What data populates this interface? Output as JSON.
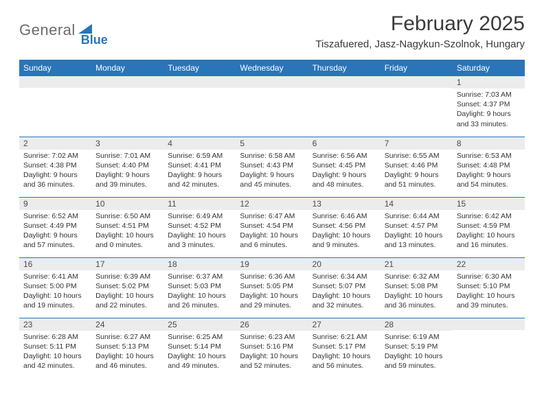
{
  "logo": {
    "general": "General",
    "blue": "Blue"
  },
  "title": "February 2025",
  "location": "Tiszafuered, Jasz-Nagykun-Szolnok, Hungary",
  "colors": {
    "header_bg": "#2a74b8",
    "header_text": "#ffffff",
    "daynum_bg": "#ececec",
    "body_text": "#333333",
    "rule": "#2a74b8",
    "logo_gray": "#6b6b6b",
    "logo_blue": "#2a74b8"
  },
  "day_headers": [
    "Sunday",
    "Monday",
    "Tuesday",
    "Wednesday",
    "Thursday",
    "Friday",
    "Saturday"
  ],
  "weeks": [
    [
      {
        "n": "",
        "sr": "",
        "ss": "",
        "dl": ""
      },
      {
        "n": "",
        "sr": "",
        "ss": "",
        "dl": ""
      },
      {
        "n": "",
        "sr": "",
        "ss": "",
        "dl": ""
      },
      {
        "n": "",
        "sr": "",
        "ss": "",
        "dl": ""
      },
      {
        "n": "",
        "sr": "",
        "ss": "",
        "dl": ""
      },
      {
        "n": "",
        "sr": "",
        "ss": "",
        "dl": ""
      },
      {
        "n": "1",
        "sr": "Sunrise: 7:03 AM",
        "ss": "Sunset: 4:37 PM",
        "dl": "Daylight: 9 hours and 33 minutes."
      }
    ],
    [
      {
        "n": "2",
        "sr": "Sunrise: 7:02 AM",
        "ss": "Sunset: 4:38 PM",
        "dl": "Daylight: 9 hours and 36 minutes."
      },
      {
        "n": "3",
        "sr": "Sunrise: 7:01 AM",
        "ss": "Sunset: 4:40 PM",
        "dl": "Daylight: 9 hours and 39 minutes."
      },
      {
        "n": "4",
        "sr": "Sunrise: 6:59 AM",
        "ss": "Sunset: 4:41 PM",
        "dl": "Daylight: 9 hours and 42 minutes."
      },
      {
        "n": "5",
        "sr": "Sunrise: 6:58 AM",
        "ss": "Sunset: 4:43 PM",
        "dl": "Daylight: 9 hours and 45 minutes."
      },
      {
        "n": "6",
        "sr": "Sunrise: 6:56 AM",
        "ss": "Sunset: 4:45 PM",
        "dl": "Daylight: 9 hours and 48 minutes."
      },
      {
        "n": "7",
        "sr": "Sunrise: 6:55 AM",
        "ss": "Sunset: 4:46 PM",
        "dl": "Daylight: 9 hours and 51 minutes."
      },
      {
        "n": "8",
        "sr": "Sunrise: 6:53 AM",
        "ss": "Sunset: 4:48 PM",
        "dl": "Daylight: 9 hours and 54 minutes."
      }
    ],
    [
      {
        "n": "9",
        "sr": "Sunrise: 6:52 AM",
        "ss": "Sunset: 4:49 PM",
        "dl": "Daylight: 9 hours and 57 minutes."
      },
      {
        "n": "10",
        "sr": "Sunrise: 6:50 AM",
        "ss": "Sunset: 4:51 PM",
        "dl": "Daylight: 10 hours and 0 minutes."
      },
      {
        "n": "11",
        "sr": "Sunrise: 6:49 AM",
        "ss": "Sunset: 4:52 PM",
        "dl": "Daylight: 10 hours and 3 minutes."
      },
      {
        "n": "12",
        "sr": "Sunrise: 6:47 AM",
        "ss": "Sunset: 4:54 PM",
        "dl": "Daylight: 10 hours and 6 minutes."
      },
      {
        "n": "13",
        "sr": "Sunrise: 6:46 AM",
        "ss": "Sunset: 4:56 PM",
        "dl": "Daylight: 10 hours and 9 minutes."
      },
      {
        "n": "14",
        "sr": "Sunrise: 6:44 AM",
        "ss": "Sunset: 4:57 PM",
        "dl": "Daylight: 10 hours and 13 minutes."
      },
      {
        "n": "15",
        "sr": "Sunrise: 6:42 AM",
        "ss": "Sunset: 4:59 PM",
        "dl": "Daylight: 10 hours and 16 minutes."
      }
    ],
    [
      {
        "n": "16",
        "sr": "Sunrise: 6:41 AM",
        "ss": "Sunset: 5:00 PM",
        "dl": "Daylight: 10 hours and 19 minutes."
      },
      {
        "n": "17",
        "sr": "Sunrise: 6:39 AM",
        "ss": "Sunset: 5:02 PM",
        "dl": "Daylight: 10 hours and 22 minutes."
      },
      {
        "n": "18",
        "sr": "Sunrise: 6:37 AM",
        "ss": "Sunset: 5:03 PM",
        "dl": "Daylight: 10 hours and 26 minutes."
      },
      {
        "n": "19",
        "sr": "Sunrise: 6:36 AM",
        "ss": "Sunset: 5:05 PM",
        "dl": "Daylight: 10 hours and 29 minutes."
      },
      {
        "n": "20",
        "sr": "Sunrise: 6:34 AM",
        "ss": "Sunset: 5:07 PM",
        "dl": "Daylight: 10 hours and 32 minutes."
      },
      {
        "n": "21",
        "sr": "Sunrise: 6:32 AM",
        "ss": "Sunset: 5:08 PM",
        "dl": "Daylight: 10 hours and 36 minutes."
      },
      {
        "n": "22",
        "sr": "Sunrise: 6:30 AM",
        "ss": "Sunset: 5:10 PM",
        "dl": "Daylight: 10 hours and 39 minutes."
      }
    ],
    [
      {
        "n": "23",
        "sr": "Sunrise: 6:28 AM",
        "ss": "Sunset: 5:11 PM",
        "dl": "Daylight: 10 hours and 42 minutes."
      },
      {
        "n": "24",
        "sr": "Sunrise: 6:27 AM",
        "ss": "Sunset: 5:13 PM",
        "dl": "Daylight: 10 hours and 46 minutes."
      },
      {
        "n": "25",
        "sr": "Sunrise: 6:25 AM",
        "ss": "Sunset: 5:14 PM",
        "dl": "Daylight: 10 hours and 49 minutes."
      },
      {
        "n": "26",
        "sr": "Sunrise: 6:23 AM",
        "ss": "Sunset: 5:16 PM",
        "dl": "Daylight: 10 hours and 52 minutes."
      },
      {
        "n": "27",
        "sr": "Sunrise: 6:21 AM",
        "ss": "Sunset: 5:17 PM",
        "dl": "Daylight: 10 hours and 56 minutes."
      },
      {
        "n": "28",
        "sr": "Sunrise: 6:19 AM",
        "ss": "Sunset: 5:19 PM",
        "dl": "Daylight: 10 hours and 59 minutes."
      },
      {
        "n": "",
        "sr": "",
        "ss": "",
        "dl": ""
      }
    ]
  ]
}
